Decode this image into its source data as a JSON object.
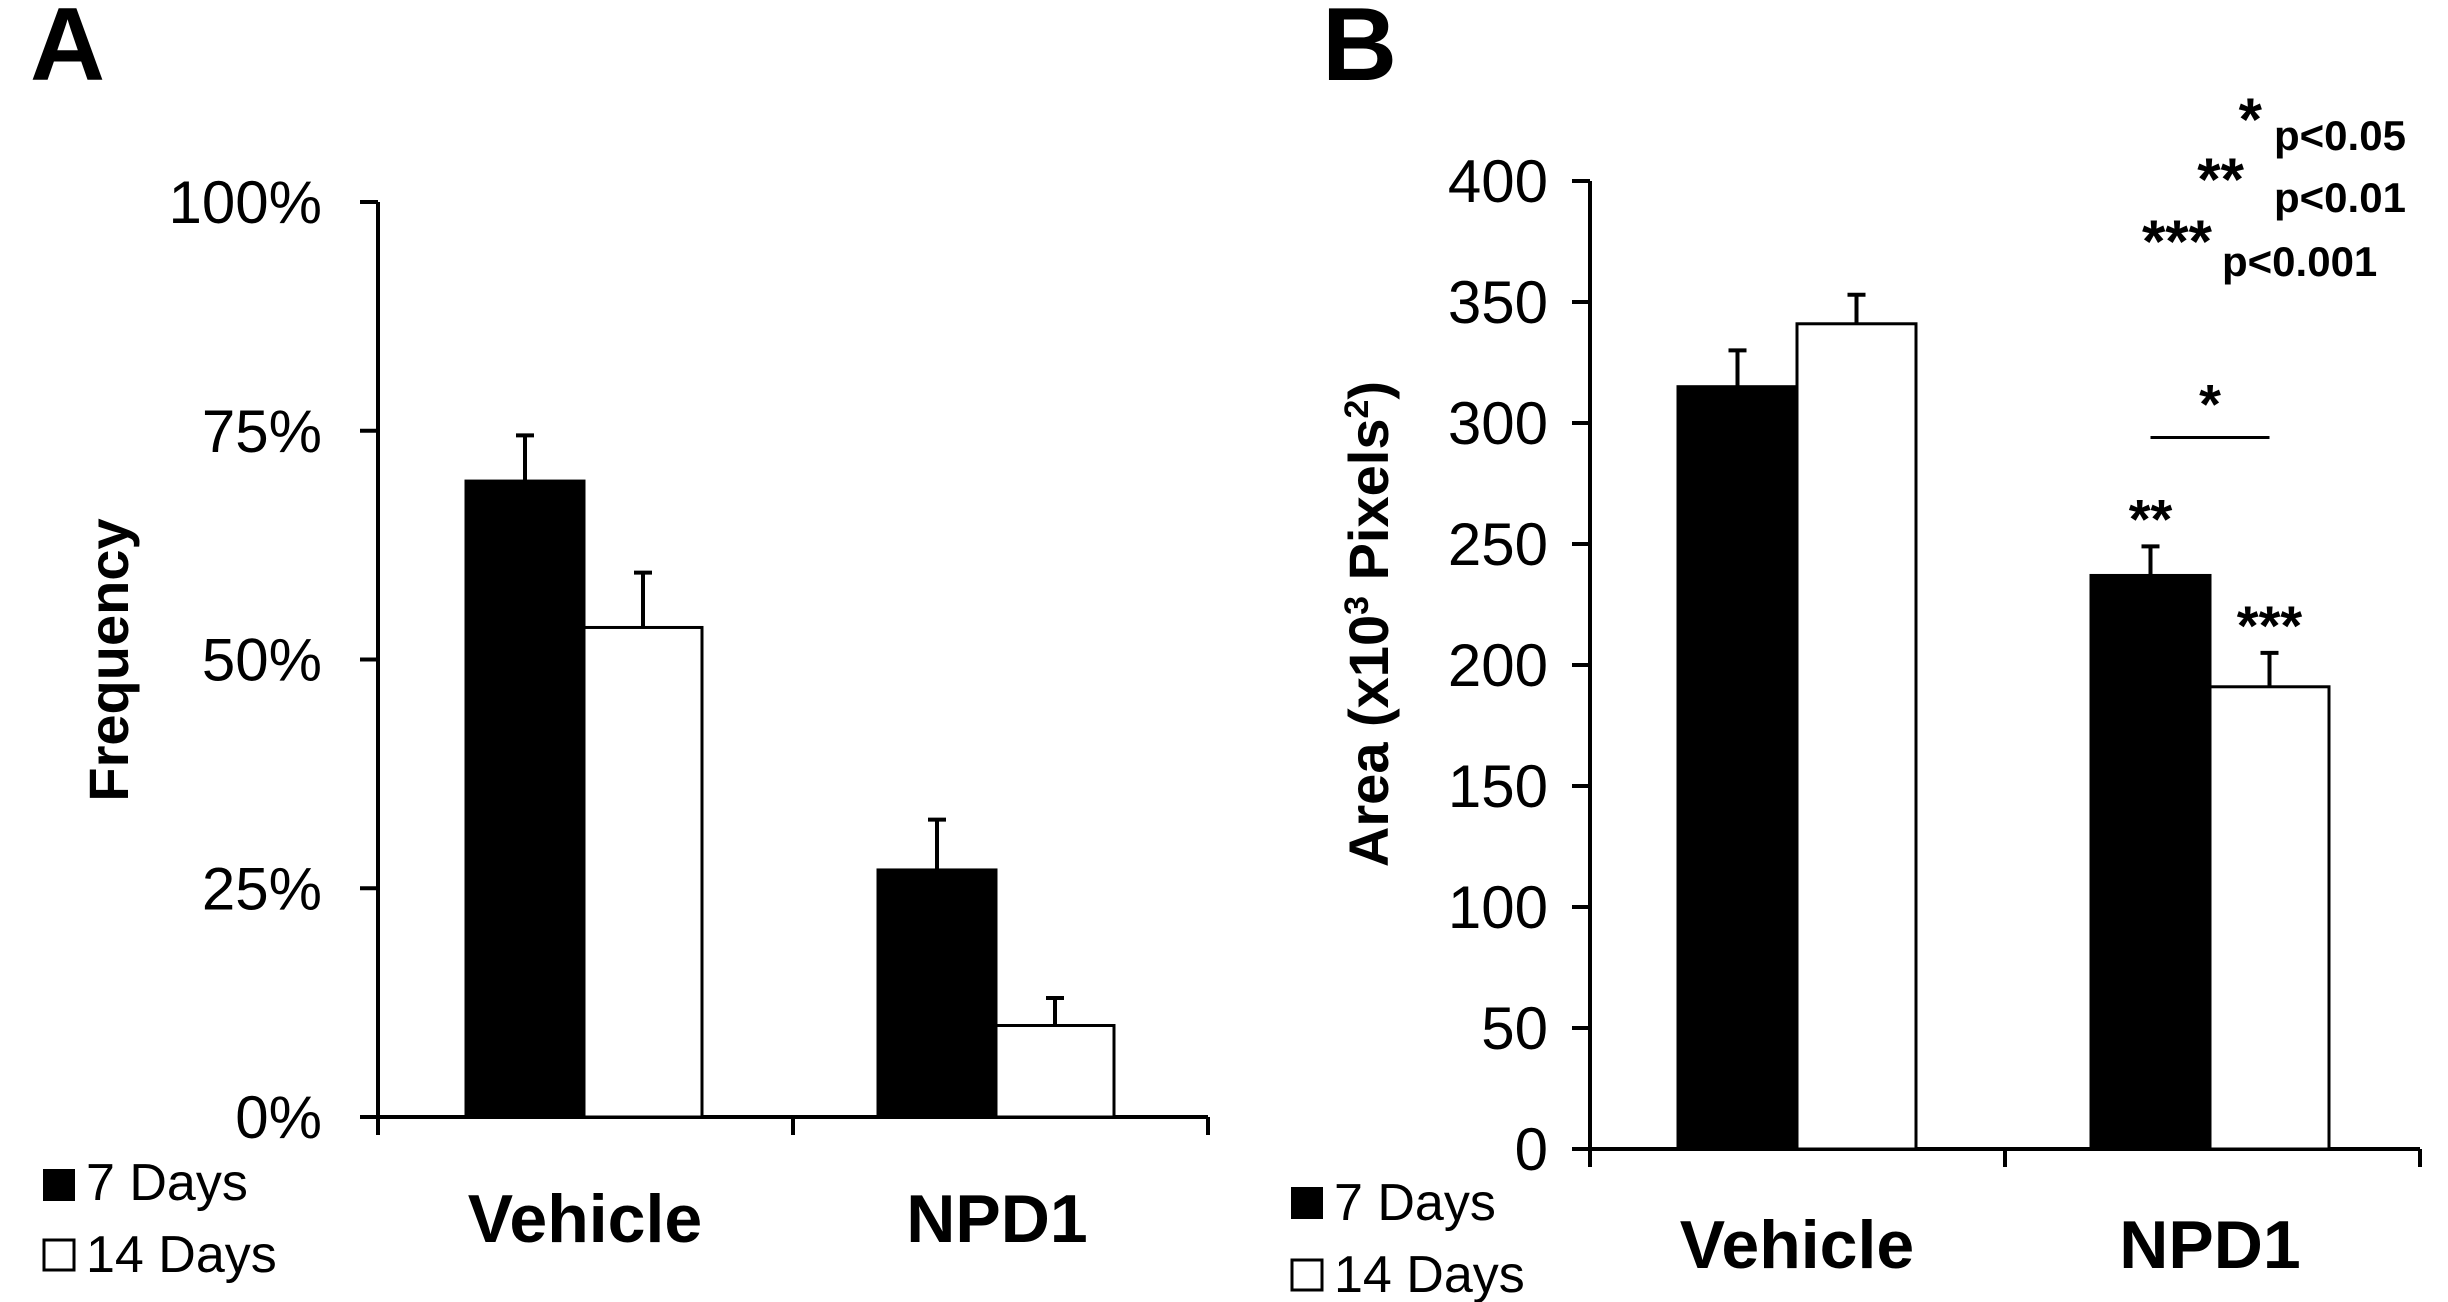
{
  "chart_data": [
    {
      "panel": "A",
      "type": "bar",
      "ylabel": "Frequency",
      "ylim": [
        0,
        100
      ],
      "yticks": [
        "0%",
        "25%",
        "50%",
        "75%",
        "100%"
      ],
      "categories": [
        "Vehicle",
        "NPD1"
      ],
      "series": [
        {
          "name": "7 Days",
          "color": "#000000",
          "values": [
            69.5,
            27
          ],
          "errors": [
            5,
            5.5
          ]
        },
        {
          "name": "14 Days",
          "color": "#ffffff",
          "values": [
            53.5,
            10
          ],
          "errors": [
            6,
            3
          ]
        }
      ],
      "legend": [
        "7 Days",
        "14 Days"
      ],
      "legend_position": "bottom-left"
    },
    {
      "panel": "B",
      "type": "bar",
      "ylabel_prefix": "Area  (x10",
      "ylabel_sup1": "3",
      "ylabel_mid": " Pixels",
      "ylabel_sup2": "2",
      "ylabel_suffix": ")",
      "ylim": [
        0,
        400
      ],
      "yticks": [
        "0",
        "50",
        "100",
        "150",
        "200",
        "250",
        "300",
        "350",
        "400"
      ],
      "categories": [
        "Vehicle",
        "NPD1"
      ],
      "series": [
        {
          "name": "7 Days",
          "color": "#000000",
          "values": [
            315,
            237
          ],
          "errors": [
            15,
            12
          ],
          "significance": [
            "",
            "**"
          ]
        },
        {
          "name": "14 Days",
          "color": "#ffffff",
          "values": [
            341,
            191
          ],
          "errors": [
            12,
            14
          ],
          "significance": [
            "",
            "***"
          ]
        }
      ],
      "bracket": {
        "label": "*"
      },
      "key": [
        {
          "stars": "*",
          "text": "p<0.05"
        },
        {
          "stars": "**",
          "text": "p<0.01"
        },
        {
          "stars": "***",
          "text": "p<0.001"
        }
      ],
      "legend": [
        "7 Days",
        "14 Days"
      ],
      "legend_position": "bottom-left"
    }
  ]
}
